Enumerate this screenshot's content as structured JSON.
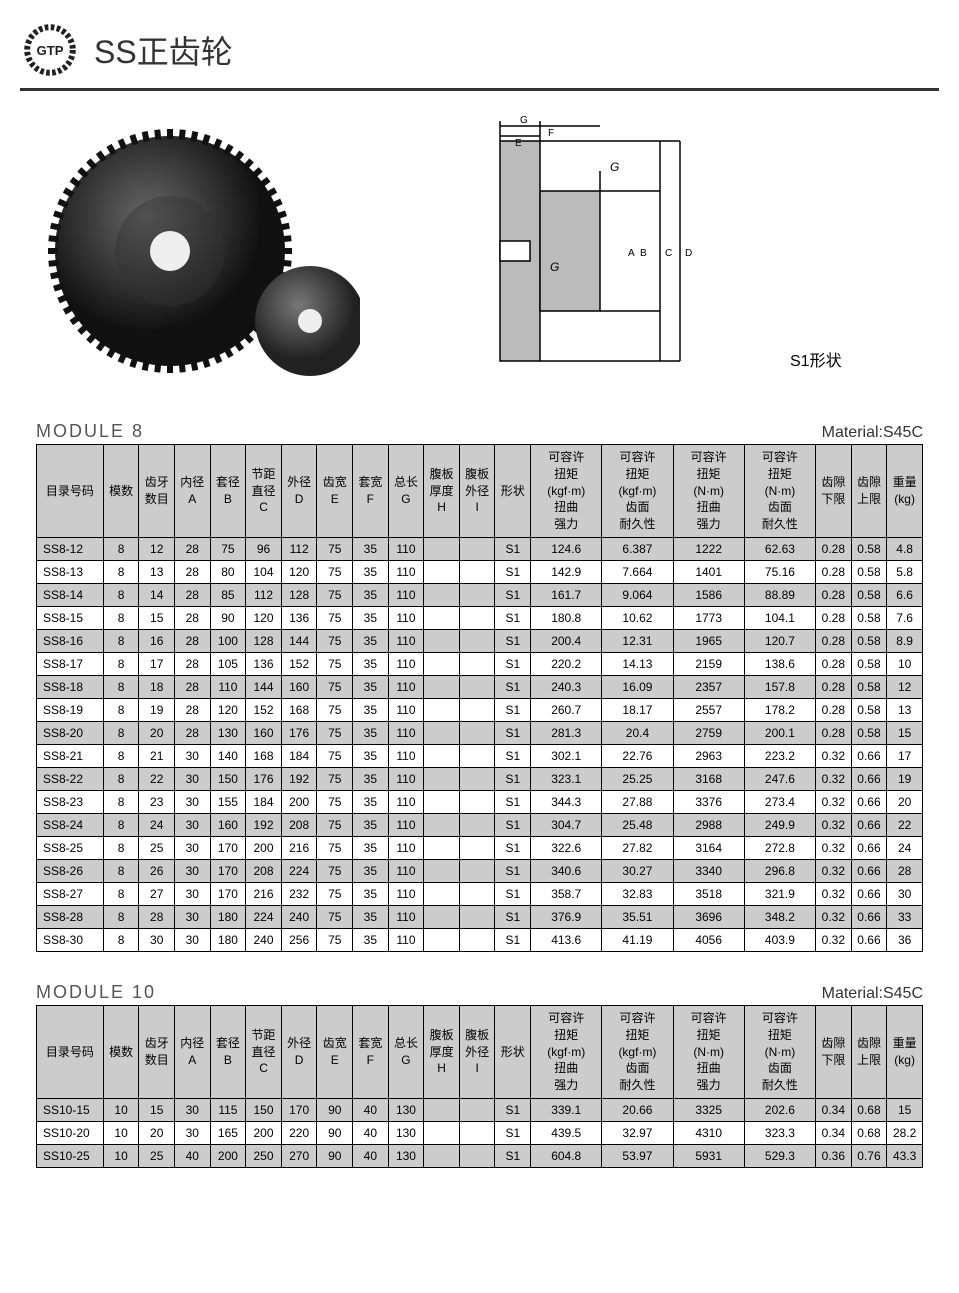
{
  "header": {
    "logo_text": "GTP",
    "title": "SS正齿轮"
  },
  "shape_label": "S1形状",
  "columns": [
    "目录号码",
    "模数",
    "齿牙\n数目",
    "内径\nA",
    "套径\nB",
    "节距\n直径\nC",
    "外径\nD",
    "齿宽\nE",
    "套宽\nF",
    "总长\nG",
    "腹板\n厚度\nH",
    "腹板\n外径\nI",
    "形状",
    "可容许\n扭矩\n(kgf·m)\n扭曲\n强力",
    "可容许\n扭矩\n(kgf·m)\n齿面\n耐久性",
    "可容许\n扭矩\n(N·m)\n扭曲\n强力",
    "可容许\n扭矩\n(N·m)\n齿面\n耐久性",
    "齿隙\n下限",
    "齿隙\n上限",
    "重量\n(kg)"
  ],
  "module8": {
    "title": "MODULE 8",
    "material": "Material:S45C",
    "rows": [
      [
        "SS8-12",
        "8",
        "12",
        "28",
        "75",
        "96",
        "112",
        "75",
        "35",
        "110",
        "",
        "",
        "S1",
        "124.6",
        "6.387",
        "1222",
        "62.63",
        "0.28",
        "0.58",
        "4.8"
      ],
      [
        "SS8-13",
        "8",
        "13",
        "28",
        "80",
        "104",
        "120",
        "75",
        "35",
        "110",
        "",
        "",
        "S1",
        "142.9",
        "7.664",
        "1401",
        "75.16",
        "0.28",
        "0.58",
        "5.8"
      ],
      [
        "SS8-14",
        "8",
        "14",
        "28",
        "85",
        "112",
        "128",
        "75",
        "35",
        "110",
        "",
        "",
        "S1",
        "161.7",
        "9.064",
        "1586",
        "88.89",
        "0.28",
        "0.58",
        "6.6"
      ],
      [
        "SS8-15",
        "8",
        "15",
        "28",
        "90",
        "120",
        "136",
        "75",
        "35",
        "110",
        "",
        "",
        "S1",
        "180.8",
        "10.62",
        "1773",
        "104.1",
        "0.28",
        "0.58",
        "7.6"
      ],
      [
        "SS8-16",
        "8",
        "16",
        "28",
        "100",
        "128",
        "144",
        "75",
        "35",
        "110",
        "",
        "",
        "S1",
        "200.4",
        "12.31",
        "1965",
        "120.7",
        "0.28",
        "0.58",
        "8.9"
      ],
      [
        "SS8-17",
        "8",
        "17",
        "28",
        "105",
        "136",
        "152",
        "75",
        "35",
        "110",
        "",
        "",
        "S1",
        "220.2",
        "14.13",
        "2159",
        "138.6",
        "0.28",
        "0.58",
        "10"
      ],
      [
        "SS8-18",
        "8",
        "18",
        "28",
        "110",
        "144",
        "160",
        "75",
        "35",
        "110",
        "",
        "",
        "S1",
        "240.3",
        "16.09",
        "2357",
        "157.8",
        "0.28",
        "0.58",
        "12"
      ],
      [
        "SS8-19",
        "8",
        "19",
        "28",
        "120",
        "152",
        "168",
        "75",
        "35",
        "110",
        "",
        "",
        "S1",
        "260.7",
        "18.17",
        "2557",
        "178.2",
        "0.28",
        "0.58",
        "13"
      ],
      [
        "SS8-20",
        "8",
        "20",
        "28",
        "130",
        "160",
        "176",
        "75",
        "35",
        "110",
        "",
        "",
        "S1",
        "281.3",
        "20.4",
        "2759",
        "200.1",
        "0.28",
        "0.58",
        "15"
      ],
      [
        "SS8-21",
        "8",
        "21",
        "30",
        "140",
        "168",
        "184",
        "75",
        "35",
        "110",
        "",
        "",
        "S1",
        "302.1",
        "22.76",
        "2963",
        "223.2",
        "0.32",
        "0.66",
        "17"
      ],
      [
        "SS8-22",
        "8",
        "22",
        "30",
        "150",
        "176",
        "192",
        "75",
        "35",
        "110",
        "",
        "",
        "S1",
        "323.1",
        "25.25",
        "3168",
        "247.6",
        "0.32",
        "0.66",
        "19"
      ],
      [
        "SS8-23",
        "8",
        "23",
        "30",
        "155",
        "184",
        "200",
        "75",
        "35",
        "110",
        "",
        "",
        "S1",
        "344.3",
        "27.88",
        "3376",
        "273.4",
        "0.32",
        "0.66",
        "20"
      ],
      [
        "SS8-24",
        "8",
        "24",
        "30",
        "160",
        "192",
        "208",
        "75",
        "35",
        "110",
        "",
        "",
        "S1",
        "304.7",
        "25.48",
        "2988",
        "249.9",
        "0.32",
        "0.66",
        "22"
      ],
      [
        "SS8-25",
        "8",
        "25",
        "30",
        "170",
        "200",
        "216",
        "75",
        "35",
        "110",
        "",
        "",
        "S1",
        "322.6",
        "27.82",
        "3164",
        "272.8",
        "0.32",
        "0.66",
        "24"
      ],
      [
        "SS8-26",
        "8",
        "26",
        "30",
        "170",
        "208",
        "224",
        "75",
        "35",
        "110",
        "",
        "",
        "S1",
        "340.6",
        "30.27",
        "3340",
        "296.8",
        "0.32",
        "0.66",
        "28"
      ],
      [
        "SS8-27",
        "8",
        "27",
        "30",
        "170",
        "216",
        "232",
        "75",
        "35",
        "110",
        "",
        "",
        "S1",
        "358.7",
        "32.83",
        "3518",
        "321.9",
        "0.32",
        "0.66",
        "30"
      ],
      [
        "SS8-28",
        "8",
        "28",
        "30",
        "180",
        "224",
        "240",
        "75",
        "35",
        "110",
        "",
        "",
        "S1",
        "376.9",
        "35.51",
        "3696",
        "348.2",
        "0.32",
        "0.66",
        "33"
      ],
      [
        "SS8-30",
        "8",
        "30",
        "30",
        "180",
        "240",
        "256",
        "75",
        "35",
        "110",
        "",
        "",
        "S1",
        "413.6",
        "41.19",
        "4056",
        "403.9",
        "0.32",
        "0.66",
        "36"
      ]
    ]
  },
  "module10": {
    "title": "MODULE 10",
    "material": "Material:S45C",
    "rows": [
      [
        "SS10-15",
        "10",
        "15",
        "30",
        "115",
        "150",
        "170",
        "90",
        "40",
        "130",
        "",
        "",
        "S1",
        "339.1",
        "20.66",
        "3325",
        "202.6",
        "0.34",
        "0.68",
        "15"
      ],
      [
        "SS10-20",
        "10",
        "20",
        "30",
        "165",
        "200",
        "220",
        "90",
        "40",
        "130",
        "",
        "",
        "S1",
        "439.5",
        "32.97",
        "4310",
        "323.3",
        "0.34",
        "0.68",
        "28.2"
      ],
      [
        "SS10-25",
        "10",
        "25",
        "40",
        "200",
        "250",
        "270",
        "90",
        "40",
        "130",
        "",
        "",
        "S1",
        "604.8",
        "53.97",
        "5931",
        "529.3",
        "0.36",
        "0.76",
        "43.3"
      ]
    ]
  },
  "col_classes": [
    "col-code",
    "col-narrow",
    "col-narrow",
    "col-narrow",
    "col-narrow",
    "col-narrow",
    "col-narrow",
    "col-narrow",
    "col-narrow",
    "col-narrow",
    "col-narrow",
    "col-narrow",
    "col-narrow",
    "col-wide",
    "col-wide",
    "col-wide",
    "col-wide",
    "col-narrow",
    "col-narrow",
    "col-narrow"
  ]
}
